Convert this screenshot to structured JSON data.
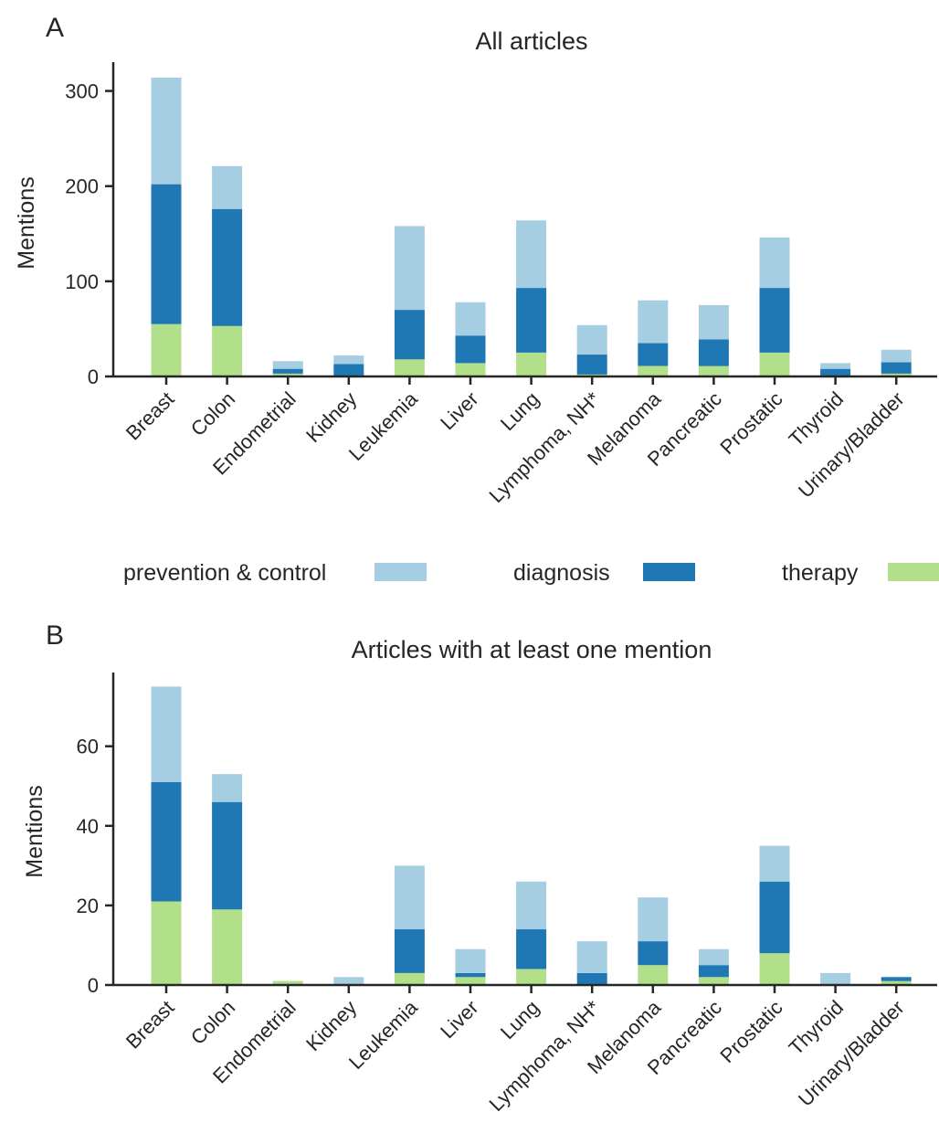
{
  "legend": [
    {
      "label": "prevention & control",
      "color": "#a6cee3"
    },
    {
      "label": "diagnosis",
      "color": "#1f78b4"
    },
    {
      "label": "therapy",
      "color": "#b2df8a"
    }
  ],
  "chart_data": [
    {
      "type": "bar",
      "stacked": true,
      "panel": "A",
      "title": "All articles",
      "xlabel": "",
      "ylabel": "Mentions",
      "ylim": [
        0,
        330
      ],
      "yticks": [
        0,
        100,
        200,
        300
      ],
      "grid": false,
      "categories": [
        "Breast",
        "Colon",
        "Endometrial",
        "Kidney",
        "Leukemia",
        "Liver",
        "Lung",
        "Lymphoma, NH*",
        "Melanoma",
        "Pancreatic",
        "Prostatic",
        "Thyroid",
        "Urinary/Bladder"
      ],
      "series": [
        {
          "name": "therapy",
          "color": "#b2df8a",
          "values": [
            55,
            53,
            3,
            1,
            18,
            14,
            25,
            2,
            11,
            11,
            25,
            1,
            3
          ]
        },
        {
          "name": "diagnosis",
          "color": "#1f78b4",
          "values": [
            147,
            123,
            5,
            12,
            52,
            29,
            68,
            21,
            24,
            28,
            68,
            7,
            12
          ]
        },
        {
          "name": "prevention & control",
          "color": "#a6cee3",
          "values": [
            112,
            45,
            8,
            9,
            88,
            35,
            71,
            31,
            45,
            36,
            53,
            6,
            13
          ]
        }
      ]
    },
    {
      "type": "bar",
      "stacked": true,
      "panel": "B",
      "title": "Articles with at least one mention",
      "xlabel": "",
      "ylabel": "Mentions",
      "ylim": [
        0,
        79
      ],
      "yticks": [
        0,
        20,
        40,
        60
      ],
      "grid": false,
      "categories": [
        "Breast",
        "Colon",
        "Endometrial",
        "Kidney",
        "Leukemia",
        "Liver",
        "Lung",
        "Lymphoma, NH*",
        "Melanoma",
        "Pancreatic",
        "Prostatic",
        "Thyroid",
        "Urinary/Bladder"
      ],
      "series": [
        {
          "name": "therapy",
          "color": "#b2df8a",
          "values": [
            21,
            19,
            1,
            0,
            3,
            2,
            4,
            0,
            5,
            2,
            8,
            0,
            1
          ]
        },
        {
          "name": "diagnosis",
          "color": "#1f78b4",
          "values": [
            30,
            27,
            0,
            0,
            11,
            1,
            10,
            3,
            6,
            3,
            18,
            0,
            1
          ]
        },
        {
          "name": "prevention & control",
          "color": "#a6cee3",
          "values": [
            24,
            7,
            0,
            2,
            16,
            6,
            12,
            8,
            11,
            4,
            9,
            3,
            0
          ]
        }
      ]
    }
  ]
}
